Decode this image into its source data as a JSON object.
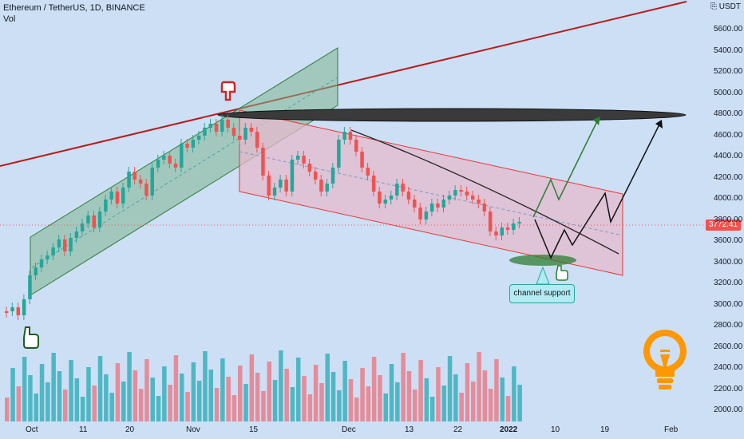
{
  "header": {
    "symbol_line": "Ethereum / TetherUS, 1D, BINANCE",
    "indicator": "Vol"
  },
  "axis": {
    "currency_tag": "USDT",
    "currency_icon": "currency-icon",
    "current_price": "3772.41",
    "price_labels": [
      "5600.00",
      "5400.00",
      "5200.00",
      "5000.00",
      "4800.00",
      "4600.00",
      "4400.00",
      "4200.00",
      "4000.00",
      "3800.00",
      "3600.00",
      "3400.00",
      "3200.00",
      "3000.00",
      "2800.00",
      "2600.00",
      "2400.00",
      "2200.00",
      "2000.00"
    ],
    "date_labels": [
      "Oct",
      "11",
      "20",
      "Nov",
      "15",
      "Dec",
      "13",
      "22",
      "2022",
      "10",
      "19",
      "Feb"
    ]
  },
  "annotation": {
    "callout_text": "channel support"
  },
  "colors": {
    "background": "#ccdff5",
    "up_candle": "#26a69a",
    "down_candle": "#ef5350",
    "trendline": "#b71c1c",
    "ascending_channel": "#a5d6a7",
    "descending_channel": "#f3c0cc",
    "bulb": "#ff9800"
  },
  "icons": [
    "hand-pointer-icon",
    "lightbulb-icon",
    "arrow-up-icon"
  ]
}
